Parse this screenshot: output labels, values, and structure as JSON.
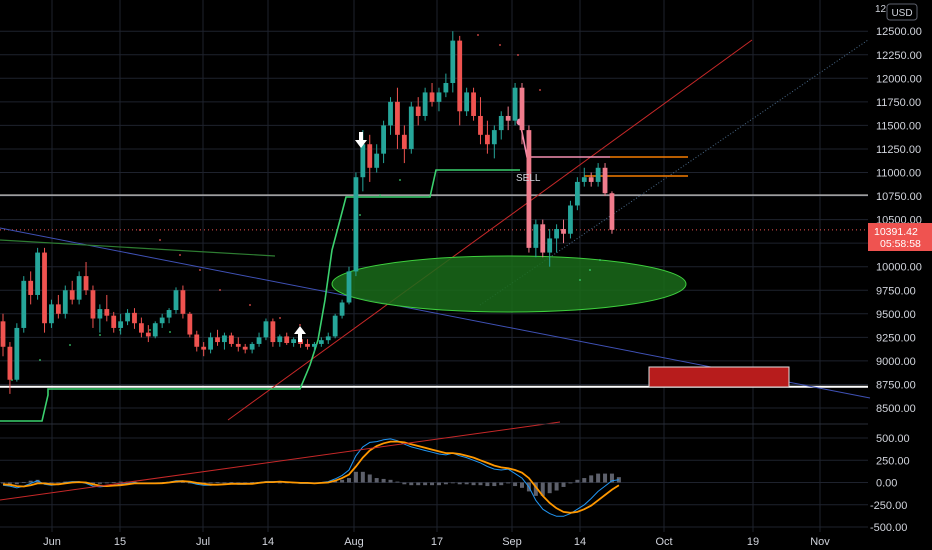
{
  "currency": "USD",
  "price_axis_top_partial": "12",
  "last_price_label": "10391.42",
  "countdown_label": "05:58:58",
  "sell_label": "SELL",
  "colors": {
    "background": "#000000",
    "grid": "#1e222d",
    "bull": "#26a69a",
    "bull_bright": "#3bd16f",
    "bear": "#ef5350",
    "bear_soft": "#f07c8c",
    "orange": "#f57c00",
    "macd_line": "#2196f3",
    "signal_line": "#ff9800",
    "ellipse_fill": "#1a6b1a",
    "ellipse_stroke": "#3ecf3e",
    "rect_fill": "#b71c1c",
    "last_price_bg": "#ef5350"
  },
  "chart_data": [
    {
      "type": "candlestick",
      "title": "",
      "currency": "USD",
      "x_ticks": [
        "Jun",
        "15",
        "Jul",
        "14",
        "Aug",
        "17",
        "Sep",
        "14",
        "Oct",
        "19",
        "Nov"
      ],
      "y_ticks": [
        8500,
        8750,
        9000,
        9250,
        9500,
        9750,
        10000,
        10250,
        10500,
        10750,
        11000,
        11250,
        11500,
        11750,
        12000,
        12250,
        12500
      ],
      "ylim": [
        8380,
        12750
      ],
      "grid": true,
      "last_price": 10391.42,
      "candles": [
        [
          9420,
          9500,
          9050,
          9150
        ],
        [
          9150,
          9200,
          8650,
          8800
        ],
        [
          8800,
          9400,
          8780,
          9350
        ],
        [
          9350,
          9900,
          9300,
          9850
        ],
        [
          9850,
          9950,
          9600,
          9700
        ],
        [
          9700,
          10200,
          9650,
          10150
        ],
        [
          10150,
          10200,
          9300,
          9400
        ],
        [
          9400,
          9650,
          9350,
          9600
        ],
        [
          9600,
          9700,
          9450,
          9500
        ],
        [
          9500,
          9800,
          9450,
          9750
        ],
        [
          9750,
          9850,
          9600,
          9650
        ],
        [
          9650,
          9950,
          9600,
          9900
        ],
        [
          9900,
          10050,
          9700,
          9750
        ],
        [
          9750,
          9800,
          9350,
          9450
        ],
        [
          9450,
          9600,
          9300,
          9550
        ],
        [
          9550,
          9700,
          9420,
          9480
        ],
        [
          9480,
          9520,
          9300,
          9350
        ],
        [
          9350,
          9500,
          9280,
          9420
        ],
        [
          9420,
          9550,
          9380,
          9510
        ],
        [
          9510,
          9560,
          9340,
          9400
        ],
        [
          9400,
          9460,
          9250,
          9300
        ],
        [
          9300,
          9380,
          9200,
          9260
        ],
        [
          9260,
          9420,
          9240,
          9400
        ],
        [
          9400,
          9500,
          9350,
          9460
        ],
        [
          9460,
          9560,
          9400,
          9540
        ],
        [
          9540,
          9780,
          9500,
          9750
        ],
        [
          9750,
          9800,
          9450,
          9500
        ],
        [
          9500,
          9520,
          9250,
          9280
        ],
        [
          9280,
          9320,
          9100,
          9150
        ],
        [
          9150,
          9200,
          9050,
          9120
        ],
        [
          9120,
          9300,
          9080,
          9250
        ],
        [
          9250,
          9330,
          9160,
          9200
        ],
        [
          9200,
          9300,
          9120,
          9270
        ],
        [
          9270,
          9300,
          9150,
          9180
        ],
        [
          9180,
          9250,
          9100,
          9150
        ],
        [
          9150,
          9180,
          9080,
          9120
        ],
        [
          9120,
          9200,
          9080,
          9180
        ],
        [
          9180,
          9300,
          9150,
          9250
        ],
        [
          9250,
          9450,
          9220,
          9420
        ],
        [
          9420,
          9450,
          9150,
          9200
        ],
        [
          9200,
          9280,
          9150,
          9260
        ],
        [
          9260,
          9300,
          9170,
          9190
        ],
        [
          9190,
          9250,
          9150,
          9230
        ],
        [
          9230,
          9260,
          9140,
          9180
        ],
        [
          9180,
          9230,
          9120,
          9150
        ],
        [
          9150,
          9200,
          9100,
          9180
        ],
        [
          9180,
          9250,
          9150,
          9220
        ],
        [
          9220,
          9300,
          9180,
          9260
        ],
        [
          9260,
          9500,
          9240,
          9480
        ],
        [
          9480,
          9650,
          9450,
          9620
        ],
        [
          9620,
          10000,
          9600,
          9950
        ],
        [
          9950,
          11000,
          9900,
          10950
        ],
        [
          10950,
          11450,
          10800,
          11300
        ],
        [
          11300,
          11400,
          10900,
          11050
        ],
        [
          11050,
          11300,
          11000,
          11200
        ],
        [
          11200,
          11550,
          11100,
          11500
        ],
        [
          11500,
          11800,
          11400,
          11750
        ],
        [
          11750,
          11900,
          11250,
          11400
        ],
        [
          11400,
          11500,
          11100,
          11250
        ],
        [
          11250,
          11750,
          11200,
          11700
        ],
        [
          11700,
          11800,
          11500,
          11600
        ],
        [
          11600,
          11900,
          11550,
          11850
        ],
        [
          11850,
          11950,
          11700,
          11750
        ],
        [
          11750,
          11900,
          11650,
          11850
        ],
        [
          11850,
          12050,
          11800,
          11950
        ],
        [
          11950,
          12500,
          11850,
          12400
        ],
        [
          12400,
          12450,
          11500,
          11650
        ],
        [
          11650,
          11900,
          11600,
          11850
        ],
        [
          11850,
          11900,
          11550,
          11600
        ],
        [
          11600,
          11800,
          11300,
          11400
        ],
        [
          11400,
          11550,
          11200,
          11300
        ],
        [
          11300,
          11500,
          11150,
          11450
        ],
        [
          11450,
          11650,
          11350,
          11600
        ],
        [
          11600,
          11700,
          11450,
          11550
        ],
        [
          11550,
          11950,
          11500,
          11900
        ],
        [
          11900,
          11950,
          11300,
          11450
        ],
        [
          11450,
          11500,
          10150,
          10200
        ],
        [
          10200,
          10500,
          10100,
          10450
        ],
        [
          10450,
          10500,
          10100,
          10150
        ],
        [
          10150,
          10400,
          10000,
          10300
        ],
        [
          10300,
          10450,
          10150,
          10400
        ],
        [
          10400,
          10500,
          10250,
          10350
        ],
        [
          10350,
          10700,
          10300,
          10650
        ],
        [
          10650,
          10950,
          10600,
          10900
        ],
        [
          10900,
          11050,
          10850,
          10950
        ],
        [
          10950,
          11000,
          10850,
          10900
        ],
        [
          10900,
          11100,
          10850,
          11050
        ],
        [
          11050,
          11100,
          10750,
          10780
        ],
        [
          10780,
          10800,
          10350,
          10391.42
        ]
      ]
    },
    {
      "type": "line",
      "title": "",
      "x_ticks": [
        "Jun",
        "15",
        "Jul",
        "14",
        "Aug",
        "17",
        "Sep",
        "14",
        "Oct",
        "19",
        "Nov"
      ],
      "y_ticks": [
        -500,
        -250,
        0,
        250,
        500
      ],
      "ylim": [
        -560,
        640
      ],
      "series": [
        {
          "values": [
            -30,
            -40,
            -60,
            -40,
            -10,
            20,
            -20,
            -30,
            -20,
            0,
            10,
            10,
            -10,
            -40,
            -50,
            -40,
            -30,
            -20,
            -10,
            0,
            -10,
            -10,
            -10,
            -5,
            5,
            20,
            20,
            0,
            -20,
            -30,
            -30,
            -20,
            -20,
            -10,
            -20,
            -20,
            -10,
            0,
            10,
            10,
            10,
            0,
            0,
            -10,
            -10,
            -10,
            0,
            10,
            40,
            80,
            140,
            300,
            400,
            450,
            460,
            480,
            490,
            470,
            430,
            400,
            380,
            360,
            340,
            320,
            310,
            330,
            300,
            280,
            250,
            220,
            180,
            150,
            140,
            150,
            100,
            50,
            -50,
            -200,
            -300,
            -350,
            -380,
            -380,
            -350,
            -300,
            -250,
            -180,
            -100,
            -40,
            20,
            30
          ]
        },
        {
          "values": [
            -20,
            -25,
            -40,
            -45,
            -30,
            -10,
            -10,
            -20,
            -20,
            -10,
            0,
            5,
            0,
            -20,
            -35,
            -40,
            -35,
            -30,
            -20,
            -10,
            -10,
            -10,
            -10,
            -8,
            0,
            10,
            15,
            10,
            -5,
            -15,
            -25,
            -25,
            -20,
            -15,
            -15,
            -15,
            -15,
            -5,
            5,
            5,
            10,
            5,
            0,
            -5,
            -5,
            -10,
            -5,
            0,
            20,
            50,
            90,
            180,
            280,
            360,
            410,
            440,
            460,
            460,
            450,
            430,
            410,
            390,
            370,
            350,
            330,
            330,
            320,
            300,
            280,
            250,
            220,
            190,
            170,
            160,
            140,
            110,
            50,
            -50,
            -150,
            -230,
            -290,
            -330,
            -340,
            -330,
            -300,
            -260,
            -200,
            -140,
            -80,
            -30
          ]
        },
        {
          "type": "bar",
          "values": [
            -10,
            -15,
            -20,
            5,
            20,
            30,
            -10,
            -10,
            0,
            10,
            10,
            5,
            -10,
            -20,
            -15,
            0,
            5,
            10,
            10,
            10,
            0,
            0,
            0,
            3,
            5,
            10,
            5,
            -10,
            -15,
            -15,
            -5,
            5,
            0,
            5,
            -5,
            -5,
            5,
            5,
            5,
            5,
            0,
            -5,
            0,
            -5,
            -5,
            0,
            5,
            10,
            20,
            30,
            50,
            120,
            120,
            90,
            50,
            40,
            30,
            10,
            -20,
            -30,
            -30,
            -30,
            -30,
            -30,
            -20,
            0,
            -20,
            -20,
            -30,
            -30,
            -40,
            -40,
            -30,
            -10,
            -40,
            -60,
            -100,
            -150,
            -150,
            -120,
            -90,
            -50,
            -10,
            30,
            50,
            80,
            100,
            100,
            100,
            60
          ]
        }
      ]
    }
  ]
}
